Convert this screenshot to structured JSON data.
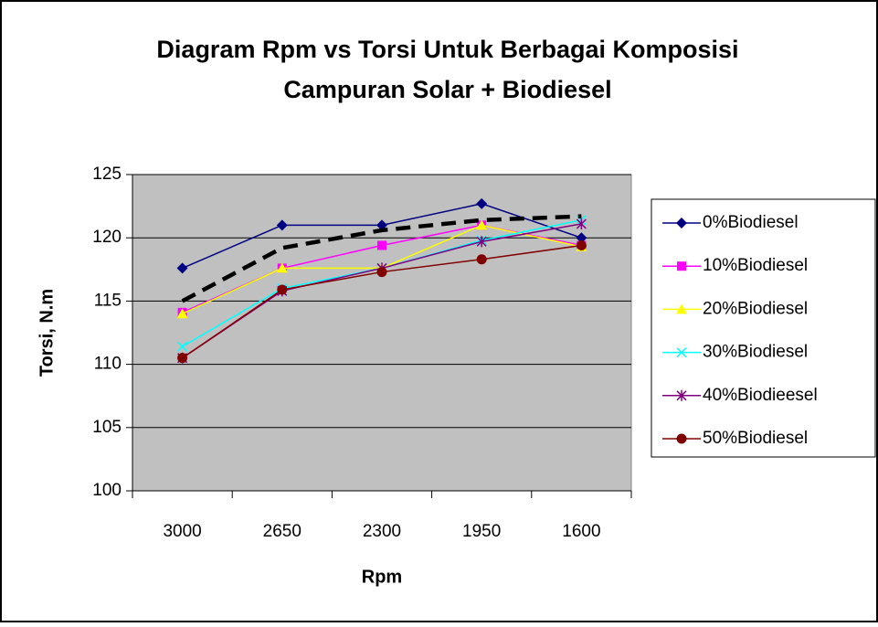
{
  "chart_data": {
    "type": "line",
    "title": [
      "Diagram Rpm vs Torsi Untuk Berbagai Komposisi",
      "Campuran Solar + Biodiesel"
    ],
    "xlabel": "Rpm",
    "ylabel": "Torsi, N.m",
    "categories": [
      "3000",
      "2650",
      "2300",
      "1950",
      "1600"
    ],
    "ylim": [
      100,
      125
    ],
    "yticks": [
      100,
      105,
      110,
      115,
      120,
      125
    ],
    "grid": true,
    "plot_background": "#c0c0c0",
    "legend": "right",
    "series": [
      {
        "name": "0%Biodiesel",
        "color": "#000080",
        "marker": "diamond",
        "values": [
          117.6,
          121.0,
          121.0,
          122.7,
          120.0
        ]
      },
      {
        "name": "10%Biodiesel",
        "color": "#ff00ff",
        "marker": "square",
        "values": [
          114.1,
          117.6,
          119.4,
          121.0,
          119.4
        ]
      },
      {
        "name": "20%Biodiesel",
        "color": "#ffff00",
        "marker": "triangle",
        "values": [
          114.0,
          117.6,
          117.6,
          121.0,
          119.3
        ]
      },
      {
        "name": "30%Biodiesel",
        "color": "#00ffff",
        "marker": "x",
        "values": [
          111.4,
          116.0,
          117.6,
          119.8,
          121.4
        ]
      },
      {
        "name": "40%Biodieesel",
        "color": "#800080",
        "marker": "star",
        "values": [
          110.5,
          115.8,
          117.6,
          119.7,
          121.1
        ]
      },
      {
        "name": "50%Biodiesel",
        "color": "#800000",
        "marker": "circle",
        "values": [
          110.5,
          115.9,
          117.3,
          118.3,
          119.4
        ]
      }
    ],
    "trendline": {
      "color": "#000000",
      "values": [
        115.0,
        119.2,
        120.6,
        121.4,
        121.7
      ]
    }
  }
}
